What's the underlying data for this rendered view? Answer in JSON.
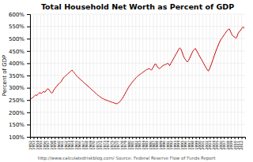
{
  "chart_data": {
    "type": "line",
    "title": "Total Household Net Worth as Percent of GDP",
    "ylabel": "Percent of GDP",
    "annotations": [
      "http://www.calculatedriskblog.com/   Source: Federal Reserve Flow of Funds Report"
    ],
    "color": "#cc0000",
    "grid": true,
    "xlim": [
      1952,
      2013
    ],
    "xticks": [
      1952,
      1953,
      1954,
      1955,
      1956,
      1957,
      1958,
      1959,
      1960,
      1961,
      1962,
      1963,
      1964,
      1965,
      1966,
      1967,
      1968,
      1969,
      1970,
      1971,
      1972,
      1973,
      1974,
      1975,
      1976,
      1977,
      1978,
      1979,
      1980,
      1981,
      1982,
      1983,
      1984,
      1985,
      1986,
      1987,
      1988,
      1989,
      1990,
      1991,
      1992,
      1993,
      1994,
      1995,
      1996,
      1997,
      1998,
      1999,
      2000,
      2001,
      2002,
      2003,
      2004,
      2005,
      2006,
      2007,
      2008,
      2009,
      2010,
      2011,
      2012
    ],
    "ylim": [
      100,
      600
    ],
    "yticks": [
      {
        "value": 100,
        "label": "100%"
      },
      {
        "value": 150,
        "label": "150%"
      },
      {
        "value": 200,
        "label": "200%"
      },
      {
        "value": 250,
        "label": "250%"
      },
      {
        "value": 300,
        "label": "300%"
      },
      {
        "value": 350,
        "label": "350%"
      },
      {
        "value": 400,
        "label": "400%"
      },
      {
        "value": 450,
        "label": "450%"
      },
      {
        "value": 500,
        "label": "500%"
      },
      {
        "value": 550,
        "label": "550%"
      },
      {
        "value": 600,
        "label": "600%"
      }
    ],
    "x": [
      1952.0,
      1952.192,
      1952.384,
      1952.577,
      1952.769,
      1952.961,
      1953.153,
      1953.346,
      1953.538,
      1953.73,
      1953.922,
      1954.115,
      1954.307,
      1954.499,
      1954.691,
      1954.884,
      1955.076,
      1955.268,
      1955.46,
      1955.653,
      1955.845,
      1956.037,
      1956.229,
      1956.422,
      1956.614,
      1956.806,
      1956.998,
      1957.191,
      1957.383,
      1957.575,
      1957.767,
      1957.96,
      1958.152,
      1958.344,
      1958.536,
      1958.729,
      1958.921,
      1959.113,
      1959.305,
      1959.498,
      1959.69,
      1959.882,
      1960.074,
      1960.267,
      1960.459,
      1960.651,
      1960.843,
      1961.036,
      1961.228,
      1961.42,
      1961.612,
      1961.805,
      1961.997,
      1962.189,
      1962.381,
      1962.574,
      1962.766,
      1962.958,
      1963.15,
      1963.343,
      1963.535,
      1963.727,
      1963.919,
      1964.112,
      1964.304,
      1964.496,
      1964.688,
      1964.881,
      1965.073,
      1965.265,
      1965.457,
      1965.65,
      1965.842,
      1966.034,
      1966.226,
      1966.419,
      1966.611,
      1966.803,
      1966.995,
      1967.188,
      1967.38,
      1967.572,
      1967.764,
      1967.956,
      1968.149,
      1968.341,
      1968.533,
      1968.725,
      1968.918,
      1969.11,
      1969.302,
      1969.494,
      1969.687,
      1969.879,
      1970.071,
      1970.263,
      1970.456,
      1970.648,
      1970.84,
      1971.032,
      1971.225,
      1971.417,
      1971.609,
      1971.801,
      1971.994,
      1972.186,
      1972.378,
      1972.57,
      1972.763,
      1972.955,
      1973.147,
      1973.339,
      1973.532,
      1973.724,
      1973.916,
      1974.108,
      1974.301,
      1974.493,
      1974.685,
      1974.877,
      1975.07,
      1975.262,
      1975.454,
      1975.646,
      1975.839,
      1976.031,
      1976.223,
      1976.415,
      1976.608,
      1976.8,
      1976.992,
      1977.184,
      1977.377,
      1977.569,
      1977.761,
      1977.953,
      1978.146,
      1978.338,
      1978.53,
      1978.722,
      1978.915,
      1979.107,
      1979.299,
      1979.491,
      1979.684,
      1979.876,
      1980.068,
      1980.26,
      1980.453,
      1980.645,
      1980.837,
      1981.029,
      1981.222,
      1981.414,
      1981.606,
      1981.798,
      1981.991,
      1982.183,
      1982.375,
      1982.567,
      1982.759,
      1982.952,
      1983.144,
      1983.336,
      1983.528,
      1983.721,
      1983.913,
      1984.105,
      1984.297,
      1984.49,
      1984.682,
      1984.874,
      1985.066,
      1985.259,
      1985.451,
      1985.643,
      1985.835,
      1986.028,
      1986.22,
      1986.412,
      1986.604,
      1986.797,
      1986.989,
      1987.181,
      1987.373,
      1987.566,
      1987.758,
      1987.95,
      1988.142,
      1988.335,
      1988.527,
      1988.719,
      1988.911,
      1989.104,
      1989.296,
      1989.488,
      1989.68,
      1989.873,
      1990.065,
      1990.257,
      1990.449,
      1990.642,
      1990.834,
      1991.026,
      1991.218,
      1991.411,
      1991.603,
      1991.795,
      1991.987,
      1992.18,
      1992.372,
      1992.564,
      1992.756,
      1992.949,
      1993.141,
      1993.333,
      1993.525,
      1993.718,
      1993.91,
      1994.102,
      1994.294,
      1994.487,
      1994.679,
      1994.871,
      1995.063,
      1995.256,
      1995.448,
      1995.64,
      1995.832,
      1996.025,
      1996.217,
      1996.409,
      1996.601,
      1996.794,
      1996.986,
      1997.178,
      1997.37,
      1997.563,
      1997.755,
      1997.947,
      1998.139,
      1998.331,
      1998.524,
      1998.716,
      1998.908,
      1999.1,
      1999.293,
      1999.485,
      1999.677,
      1999.869,
      2000.062,
      2000.254,
      2000.446,
      2000.638,
      2000.831,
      2001.023,
      2001.215,
      2001.407,
      2001.6,
      2001.792,
      2001.984,
      2002.176,
      2002.369,
      2002.561,
      2002.753,
      2002.945,
      2003.138,
      2003.33,
      2003.522,
      2003.714,
      2003.907,
      2004.099,
      2004.291,
      2004.483,
      2004.676,
      2004.868,
      2005.06,
      2005.252,
      2005.445,
      2005.637,
      2005.829,
      2006.021,
      2006.214,
      2006.406,
      2006.598,
      2006.79,
      2006.983,
      2007.175,
      2007.367,
      2007.559,
      2007.752,
      2007.944,
      2008.136,
      2008.328,
      2008.521,
      2008.713,
      2008.905,
      2009.097,
      2009.29,
      2009.482,
      2009.674,
      2009.866,
      2010.059,
      2010.251,
      2010.443,
      2010.635,
      2010.828,
      2011.02,
      2011.212,
      2011.404,
      2011.597,
      2011.789,
      2011.981,
      2012.173,
      2012.366,
      2012.558,
      2012.75
    ],
    "values": [
      252,
      254,
      257,
      258,
      260,
      262,
      265,
      268,
      271,
      270,
      268,
      272,
      275,
      278,
      280,
      279,
      278,
      277,
      280,
      283,
      285,
      283,
      282,
      285,
      290,
      293,
      296,
      295,
      292,
      288,
      284,
      280,
      278,
      280,
      285,
      290,
      295,
      298,
      302,
      305,
      308,
      312,
      315,
      318,
      320,
      322,
      325,
      330,
      335,
      340,
      342,
      345,
      348,
      350,
      352,
      355,
      358,
      360,
      362,
      365,
      368,
      370,
      372,
      368,
      365,
      362,
      358,
      355,
      352,
      348,
      345,
      342,
      340,
      338,
      335,
      332,
      330,
      328,
      325,
      322,
      320,
      318,
      315,
      312,
      310,
      308,
      305,
      302,
      300,
      298,
      295,
      292,
      290,
      288,
      285,
      282,
      280,
      278,
      275,
      272,
      270,
      268,
      266,
      264,
      262,
      260,
      258,
      256,
      255,
      254,
      252,
      251,
      250,
      249,
      248,
      247,
      246,
      245,
      244,
      243,
      242,
      241,
      240,
      239,
      238,
      237,
      236,
      235,
      235,
      236,
      238,
      240,
      242,
      245,
      248,
      252,
      256,
      260,
      265,
      270,
      275,
      280,
      285,
      290,
      295,
      300,
      305,
      308,
      312,
      316,
      320,
      324,
      326,
      330,
      333,
      336,
      340,
      342,
      345,
      348,
      350,
      352,
      354,
      356,
      358,
      360,
      362,
      364,
      366,
      368,
      370,
      372,
      374,
      375,
      376,
      377,
      378,
      376,
      374,
      372,
      375,
      380,
      385,
      390,
      395,
      398,
      395,
      390,
      385,
      382,
      380,
      378,
      380,
      382,
      385,
      388,
      390,
      392,
      393,
      394,
      395,
      396,
      398,
      400,
      398,
      395,
      390,
      395,
      400,
      405,
      410,
      415,
      420,
      425,
      430,
      435,
      440,
      445,
      450,
      455,
      460,
      462,
      460,
      455,
      448,
      440,
      432,
      425,
      420,
      416,
      412,
      408,
      405,
      408,
      412,
      418,
      424,
      430,
      436,
      442,
      448,
      452,
      455,
      458,
      460,
      455,
      450,
      445,
      440,
      435,
      430,
      425,
      420,
      415,
      410,
      405,
      400,
      395,
      390,
      385,
      380,
      376,
      372,
      368,
      372,
      378,
      385,
      392,
      400,
      408,
      416,
      424,
      432,
      440,
      448,
      456,
      462,
      468,
      475,
      482,
      488,
      494,
      498,
      502,
      506,
      510,
      514,
      518,
      522,
      526,
      530,
      534,
      536,
      538,
      540,
      535,
      528,
      522,
      516,
      512,
      510,
      508,
      506,
      504,
      502,
      506,
      514,
      522,
      526,
      530,
      532,
      536,
      540,
      544,
      548,
      546,
      542
    ]
  }
}
